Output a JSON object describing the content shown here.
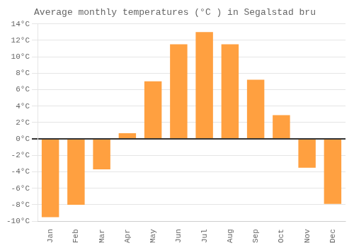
{
  "chart_data": {
    "type": "bar",
    "title": "Average monthly temperatures (°C ) in Segalstad bru",
    "categories": [
      "Jan",
      "Feb",
      "Mar",
      "Apr",
      "May",
      "Jun",
      "Jul",
      "Aug",
      "Sep",
      "Oct",
      "Nov",
      "Dec"
    ],
    "values": [
      -9.5,
      -8.0,
      -3.7,
      0.7,
      7.0,
      11.5,
      13.0,
      11.5,
      7.2,
      2.9,
      -3.5,
      -7.9
    ],
    "color": "#FFA040",
    "ylim": [
      -10,
      14
    ],
    "yticks": [
      {
        "value": -10,
        "label": "-10°C"
      },
      {
        "value": -8,
        "label": "-8°C"
      },
      {
        "value": -6,
        "label": "-6°C"
      },
      {
        "value": -4,
        "label": "-4°C"
      },
      {
        "value": -2,
        "label": "-2°C"
      },
      {
        "value": 0,
        "label": "0°C"
      },
      {
        "value": 2,
        "label": "2°C"
      },
      {
        "value": 4,
        "label": "4°C"
      },
      {
        "value": 6,
        "label": "6°C"
      },
      {
        "value": 8,
        "label": "8°C"
      },
      {
        "value": 10,
        "label": "10°C"
      },
      {
        "value": 12,
        "label": "12°C"
      },
      {
        "value": 14,
        "label": "14°C"
      }
    ],
    "grid": true
  }
}
